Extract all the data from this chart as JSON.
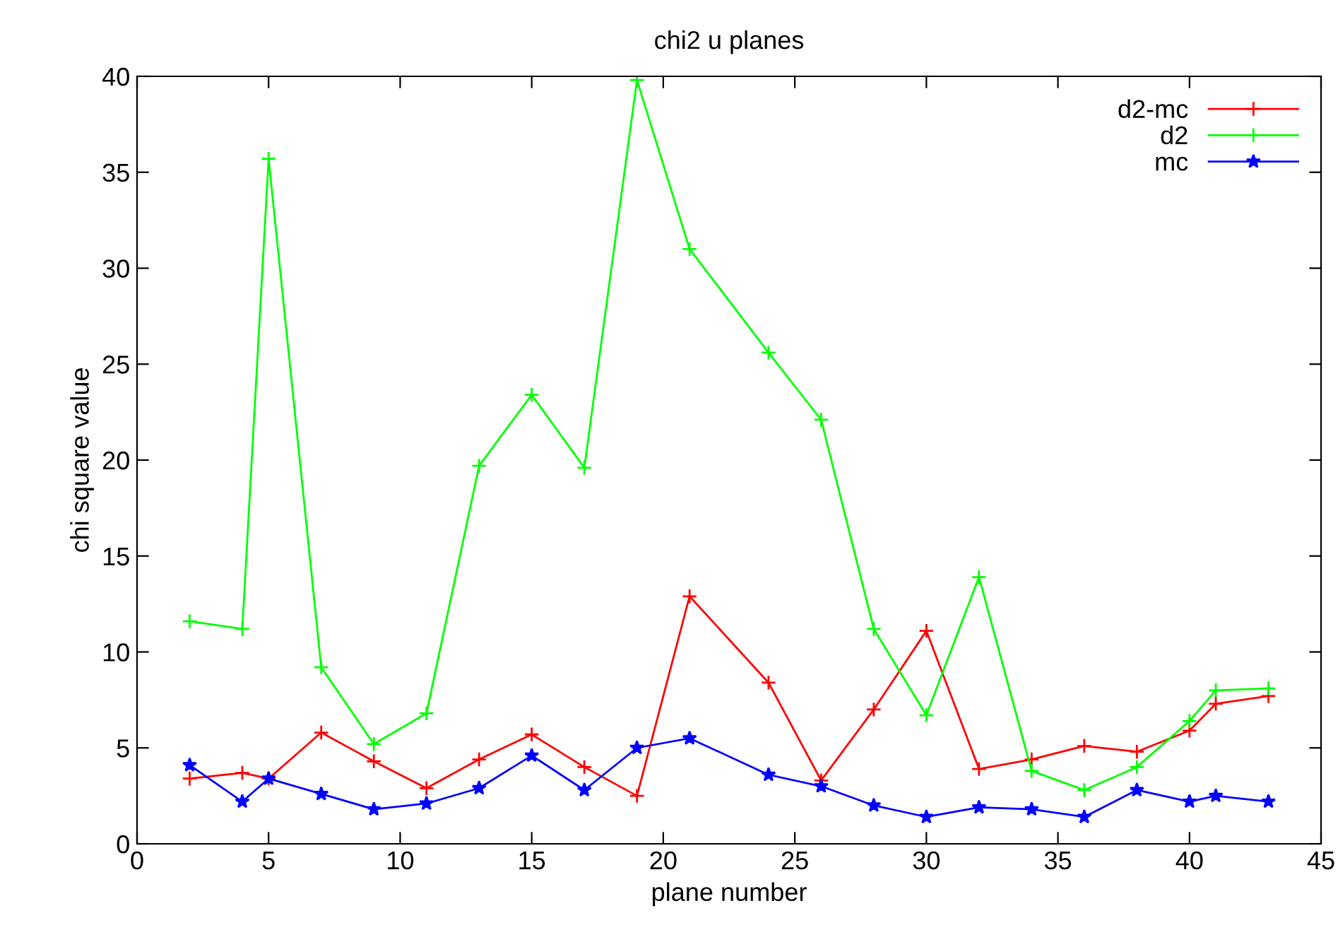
{
  "chart_data": {
    "type": "line",
    "title": "chi2 u planes",
    "xlabel": "plane number",
    "ylabel": "chi square value",
    "x": [
      2,
      4,
      5,
      7,
      9,
      11,
      13,
      15,
      17,
      19,
      21,
      24,
      26,
      28,
      30,
      32,
      34,
      36,
      38,
      40,
      41,
      43
    ],
    "series": [
      {
        "name": "d2-mc",
        "color": "#ff0000",
        "marker": "cross",
        "values": [
          3.4,
          3.7,
          3.4,
          5.8,
          4.3,
          2.9,
          4.4,
          5.7,
          4.0,
          2.5,
          12.9,
          8.4,
          3.3,
          7.0,
          11.1,
          3.9,
          4.4,
          5.1,
          4.8,
          5.9,
          7.3,
          7.7
        ]
      },
      {
        "name": "d2",
        "color": "#00ff00",
        "marker": "cross",
        "values": [
          11.6,
          11.2,
          35.7,
          9.2,
          5.2,
          6.8,
          19.7,
          23.4,
          19.6,
          39.8,
          31.0,
          25.6,
          22.1,
          11.2,
          6.7,
          13.9,
          3.8,
          2.8,
          4.0,
          6.4,
          8.0,
          8.1
        ]
      },
      {
        "name": "mc",
        "color": "#0000ff",
        "marker": "star",
        "values": [
          4.1,
          2.2,
          3.4,
          2.6,
          1.8,
          2.1,
          2.9,
          4.6,
          2.8,
          5.0,
          5.5,
          3.6,
          3.0,
          2.0,
          1.4,
          1.9,
          1.8,
          1.4,
          2.8,
          2.2,
          2.5,
          2.2
        ]
      }
    ],
    "xlim": [
      0,
      45
    ],
    "xticks": [
      0,
      5,
      10,
      15,
      20,
      25,
      30,
      35,
      40,
      45
    ],
    "ylim": [
      0,
      40
    ],
    "yticks": [
      0,
      5,
      10,
      15,
      20,
      25,
      30,
      35,
      40
    ],
    "legend": "top right",
    "line_style": "solid"
  }
}
